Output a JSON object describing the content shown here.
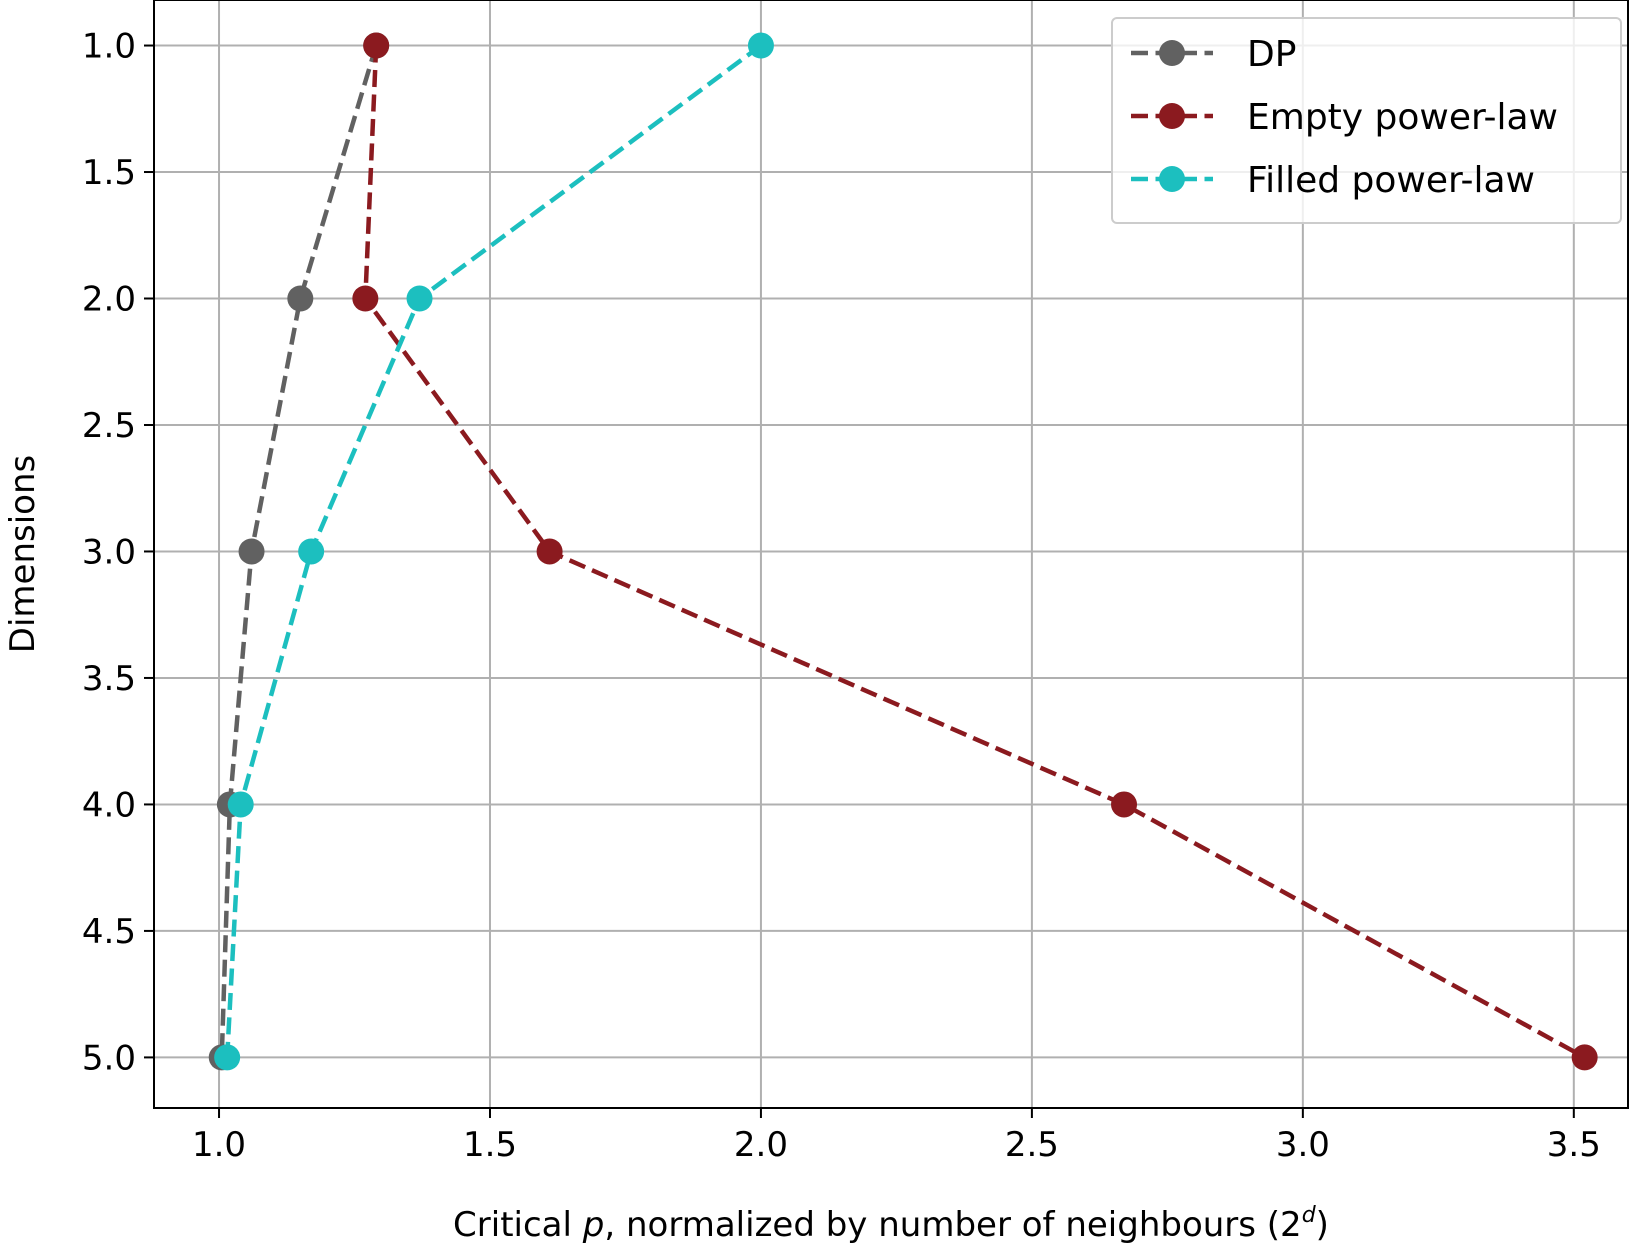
{
  "chart_data": {
    "type": "line",
    "title": "",
    "xlabel": {
      "prefix": "Critical ",
      "var": "p",
      "middle": ", normalized by number of neighbours (2",
      "sup": "d",
      "suffix": ")"
    },
    "ylabel": "Dimensions",
    "xlim": [
      0.88,
      3.6
    ],
    "ylim": [
      5.2,
      0.82
    ],
    "y_inverted": true,
    "xticks": [
      1.0,
      1.5,
      2.0,
      2.5,
      3.0,
      3.5
    ],
    "xtick_labels": [
      "1.0",
      "1.5",
      "2.0",
      "2.5",
      "3.0",
      "3.5"
    ],
    "yticks": [
      1.0,
      1.5,
      2.0,
      2.5,
      3.0,
      3.5,
      4.0,
      4.5,
      5.0
    ],
    "ytick_labels": [
      "1.0",
      "1.5",
      "2.0",
      "2.5",
      "3.0",
      "3.5",
      "4.0",
      "4.5",
      "5.0"
    ],
    "grid": true,
    "legend_position": "top-right",
    "series": [
      {
        "name": "DP",
        "color": "#616161",
        "line_style": "dashed",
        "marker": "circle",
        "points": [
          {
            "x": 1.29,
            "y": 1
          },
          {
            "x": 1.15,
            "y": 2
          },
          {
            "x": 1.06,
            "y": 3
          },
          {
            "x": 1.02,
            "y": 4
          },
          {
            "x": 1.005,
            "y": 5
          }
        ]
      },
      {
        "name": "Empty power-law",
        "color": "#8b1a1f",
        "line_style": "dashed",
        "marker": "circle",
        "points": [
          {
            "x": 1.29,
            "y": 1
          },
          {
            "x": 1.27,
            "y": 2
          },
          {
            "x": 1.61,
            "y": 3
          },
          {
            "x": 2.67,
            "y": 4
          },
          {
            "x": 3.52,
            "y": 5
          }
        ]
      },
      {
        "name": "Filled power-law",
        "color": "#1cbfbf",
        "line_style": "dashed",
        "marker": "circle",
        "points": [
          {
            "x": 2.0,
            "y": 1
          },
          {
            "x": 1.37,
            "y": 2
          },
          {
            "x": 1.17,
            "y": 3
          },
          {
            "x": 1.04,
            "y": 4
          },
          {
            "x": 1.015,
            "y": 5
          }
        ]
      }
    ]
  }
}
